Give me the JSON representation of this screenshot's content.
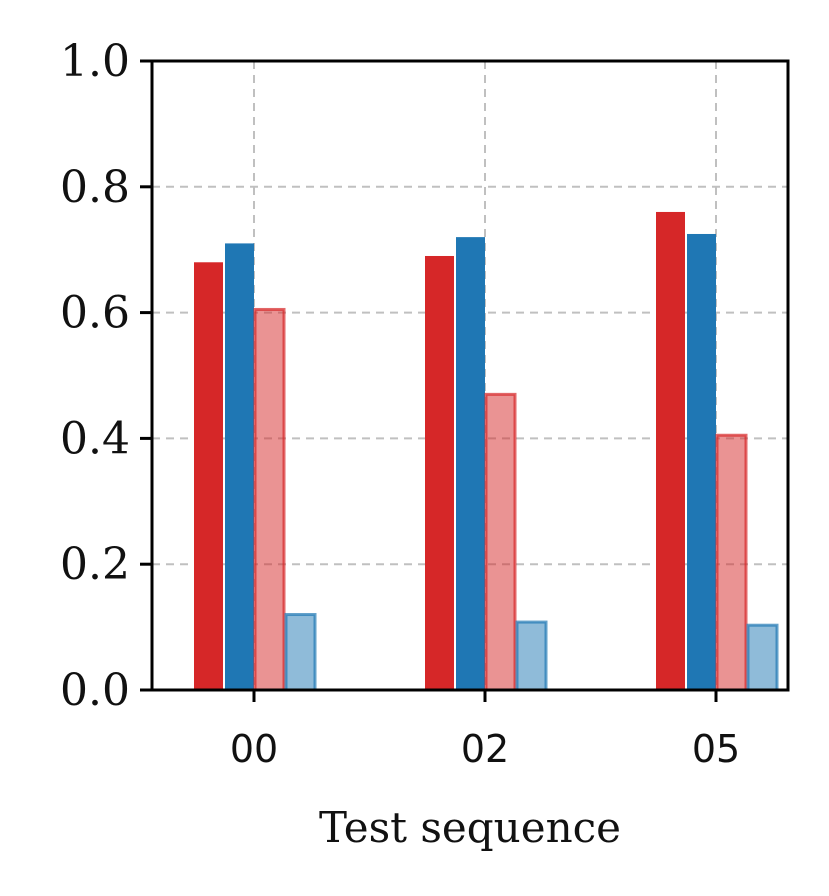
{
  "chart_data": {
    "type": "bar",
    "title": "",
    "xlabel": "Test sequence",
    "ylabel": "",
    "categories": [
      "00",
      "02",
      "05"
    ],
    "ylim": [
      0,
      1.0
    ],
    "yticks": [
      "0.0",
      "0.2",
      "0.4",
      "0.6",
      "0.8",
      "1.0"
    ],
    "grid": true,
    "legend": "none",
    "series": [
      {
        "values": [
          0.68,
          0.69,
          0.76
        ],
        "color": "#d62728",
        "opacity": 1.0
      },
      {
        "values": [
          0.71,
          0.72,
          0.725
        ],
        "color": "#1f77b4",
        "opacity": 1.0
      },
      {
        "values": [
          0.605,
          0.47,
          0.405
        ],
        "color": "#d62728",
        "opacity": 0.5
      },
      {
        "values": [
          0.12,
          0.108,
          0.103
        ],
        "color": "#1f77b4",
        "opacity": 0.5
      }
    ]
  }
}
